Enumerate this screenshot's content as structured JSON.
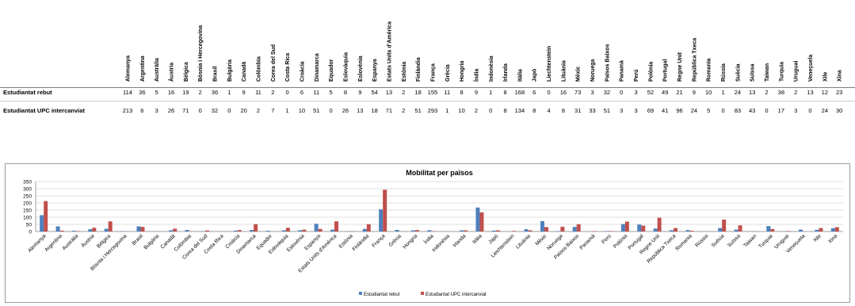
{
  "table": {
    "row_labels": [
      "Estudiantat rebut",
      "Estudiantat UPC intercanviat"
    ]
  },
  "chart_data": {
    "type": "bar",
    "title": "Mobilitat per països",
    "xlabel": "",
    "ylabel": "",
    "ylim": [
      0,
      350
    ],
    "yticks": [
      0,
      50,
      100,
      150,
      200,
      250,
      300,
      350
    ],
    "grid": true,
    "legend": "bottom",
    "categories": [
      "Alemanya",
      "Argentina",
      "Austràlia",
      "Àustria",
      "Bèlgica",
      "Bòsnia i Hercegovina",
      "Brasil",
      "Bulgària",
      "Canadà",
      "Colòmbia",
      "Corea del Sud",
      "Costa Rica",
      "Croàcia",
      "Dinamarca",
      "Equador",
      "Eslovàquia",
      "Eslovènia",
      "Espanya",
      "Estats Units d'Amèrica",
      "Estònia",
      "Finlàndia",
      "França",
      "Grècia",
      "Hongria",
      "Índia",
      "Indonèsia",
      "Irlanda",
      "Itàlia",
      "Japó",
      "Liechtenstein",
      "Lituània",
      "Mèxic",
      "Noruega",
      "Països Baixos",
      "Panamà",
      "Perú",
      "Polònia",
      "Portugal",
      "Regne Unit",
      "República Txeca",
      "Romania",
      "Rússia",
      "Suècia",
      "Suïssa",
      "Taiwan",
      "Turquia",
      "Uruguai",
      "Veneçuela",
      "Xile",
      "Xina"
    ],
    "table_categories": [
      "Alemanya",
      "Argentina",
      "Austràlia",
      "Àustria",
      "Bèlgica",
      "Bòsnia i Hercegovina",
      "Brasil",
      "Bulgària",
      "Canadà",
      "Colòmbia",
      "Corea del Sud",
      "Costa Rica",
      "Croàcia",
      "Dinamarca",
      "Equador",
      "Eslovàquia",
      "Eslovènia",
      "Espanya",
      "Estats Units d'Amèrica",
      "Estònia",
      "Finlàndia",
      "França",
      "Grècia",
      "Hongria",
      "Índia",
      "Indonèsia",
      "Irlanda",
      "Itàlia",
      "Japó",
      "Liechtenstein",
      "Lituània",
      "Mèxic",
      "Noruega",
      "Països Baixos",
      "Panamà",
      "Perú",
      "Polònia",
      "Portugal",
      "Regne Unit",
      "República Txeca",
      "Romania",
      "Rússia",
      "Suècia",
      "Suïssa",
      "Taiwan",
      "Turquia",
      "Uruguai",
      "Veneçuela",
      "Xile",
      "Xina"
    ],
    "series": [
      {
        "name": "Estudiantat rebut",
        "color": "#4f81bd",
        "values": [
          114,
          36,
          5,
          16,
          19,
          2,
          36,
          1,
          9,
          11,
          2,
          0,
          6,
          11,
          5,
          8,
          9,
          54,
          13,
          2,
          18,
          155,
          11,
          8,
          9,
          1,
          8,
          168,
          6,
          0,
          16,
          73,
          3,
          32,
          0,
          3,
          52,
          49,
          21,
          9,
          10,
          1,
          24,
          13,
          2,
          38,
          2,
          13,
          12,
          23
        ]
      },
      {
        "name": "Estudiantat UPC intercanviat",
        "color": "#c0504d",
        "values": [
          213,
          6,
          3,
          26,
          71,
          0,
          32,
          0,
          20,
          2,
          7,
          1,
          10,
          51,
          0,
          26,
          13,
          18,
          71,
          2,
          51,
          293,
          1,
          10,
          2,
          0,
          8,
          134,
          8,
          4,
          8,
          31,
          33,
          51,
          3,
          3,
          69,
          41,
          96,
          24,
          5,
          0,
          83,
          43,
          0,
          17,
          3,
          0,
          24,
          30
        ]
      }
    ]
  }
}
